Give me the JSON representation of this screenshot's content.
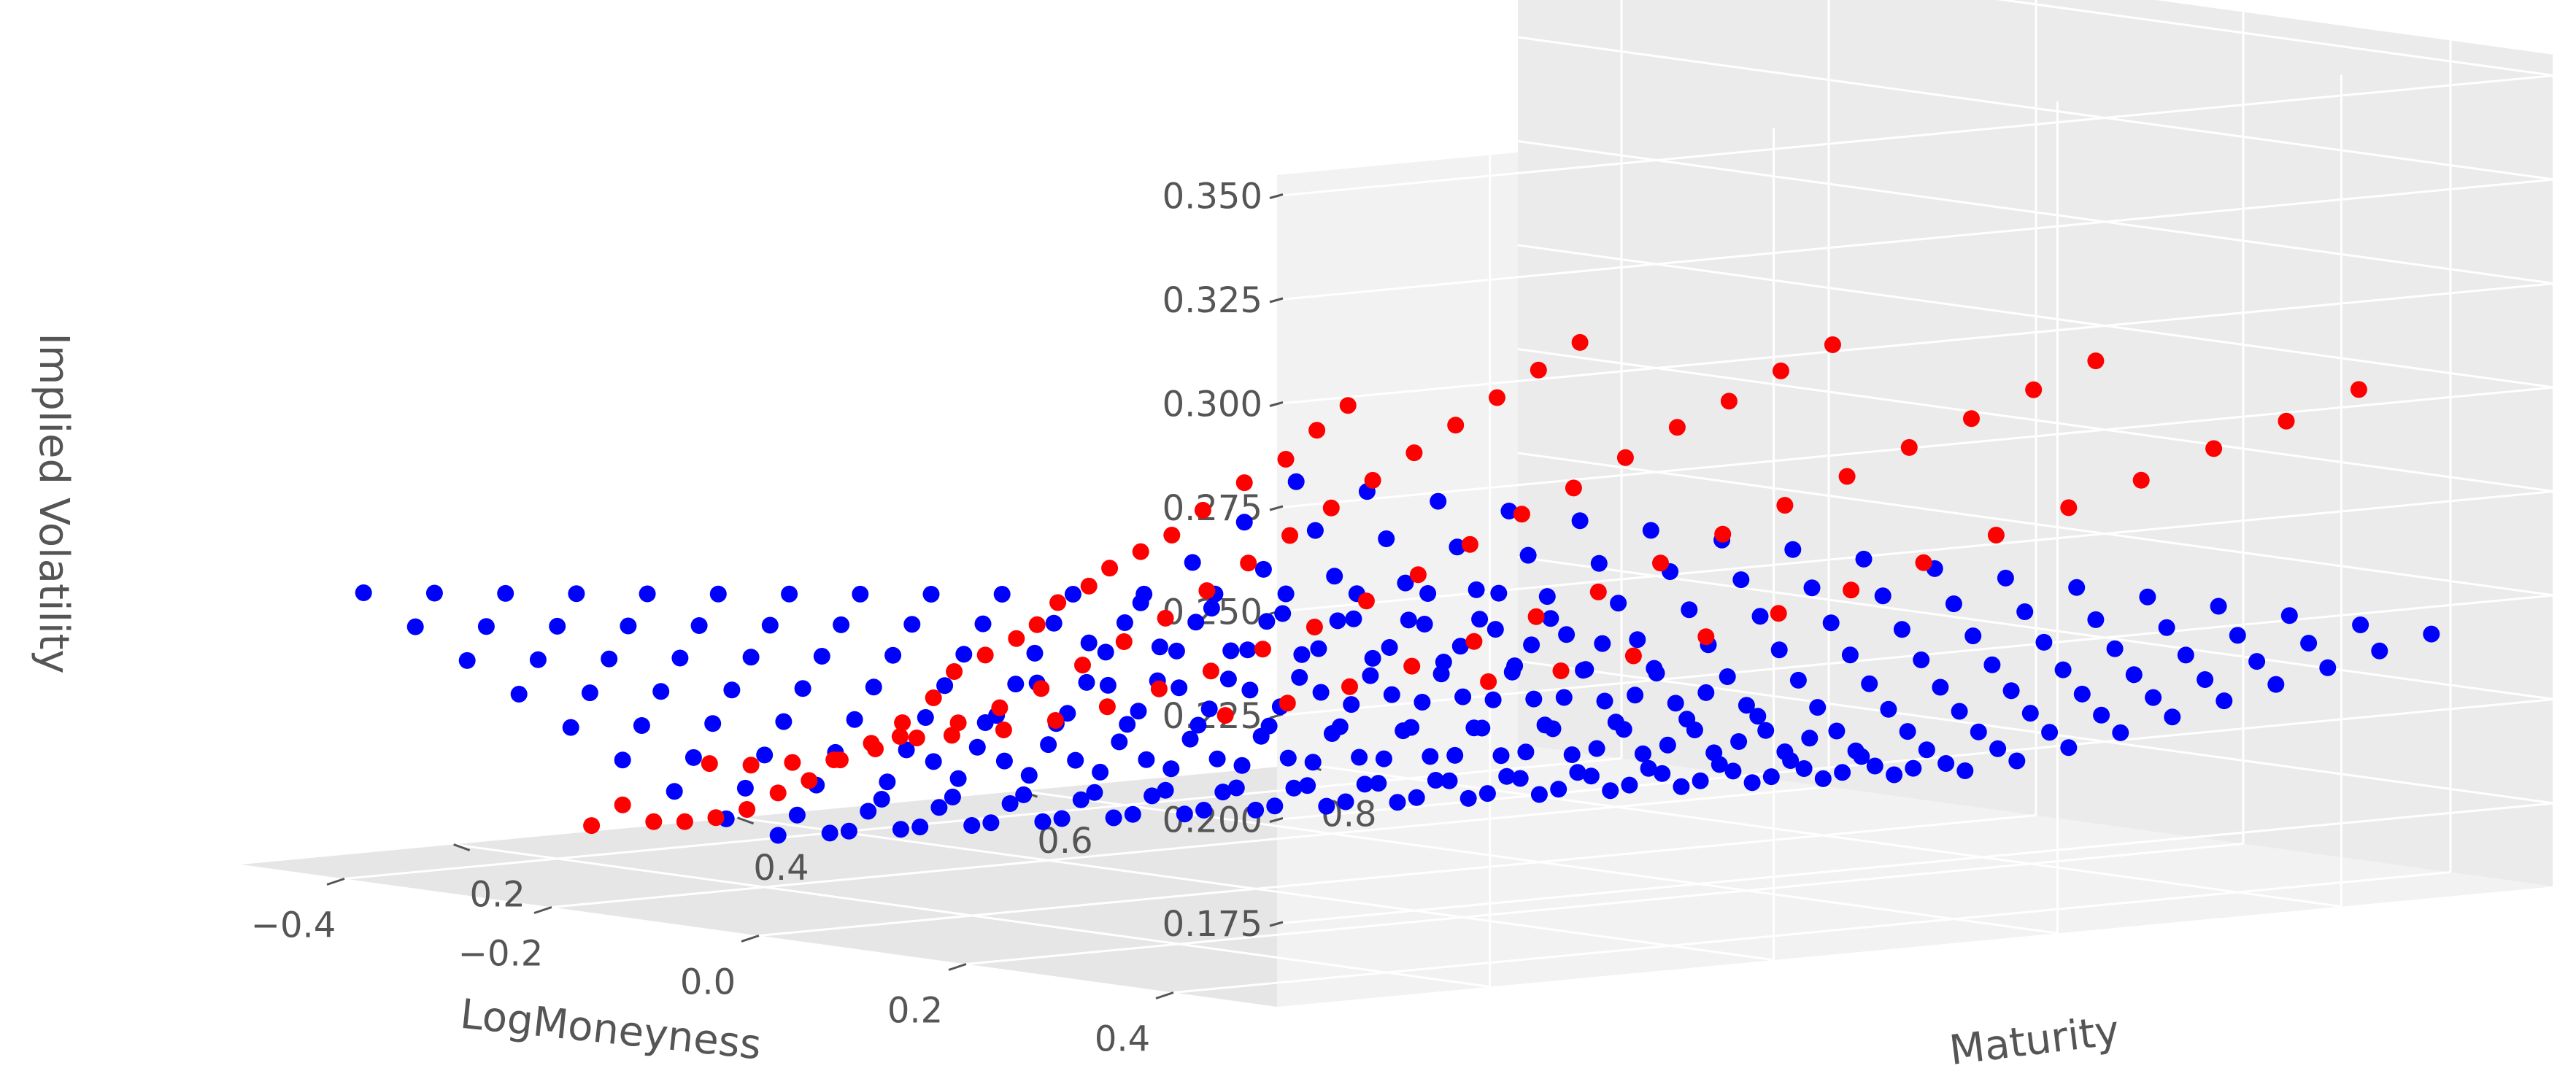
{
  "chart_data": {
    "type": "scatter3d",
    "xlabel": "LogMoneyness",
    "ylabel": "Maturity",
    "zlabel": "Implied Volatility",
    "x_ticks": [
      0.4,
      0.2,
      0.0,
      -0.2,
      -0.4
    ],
    "x_tick_labels": [
      "0.4",
      "0.2",
      "0.0",
      "−0.2",
      "−0.4"
    ],
    "y_ticks": [
      0.2,
      0.4,
      0.6,
      0.8
    ],
    "y_tick_labels": [
      "0.2",
      "0.4",
      "0.6",
      "0.8"
    ],
    "z_ticks": [
      0.175,
      0.2,
      0.225,
      0.25,
      0.275,
      0.3,
      0.325,
      0.35
    ],
    "z_tick_labels": [
      "0.175",
      "0.200",
      "0.225",
      "0.250",
      "0.275",
      "0.300",
      "0.325",
      "0.350"
    ],
    "xlim": [
      -0.5,
      0.5
    ],
    "ylim": [
      0.05,
      0.95
    ],
    "zlim": [
      0.155,
      0.355
    ],
    "grid": true,
    "colors": {
      "surface": "#0000ff",
      "market": "#ff0000",
      "pane": "#f2f2f2",
      "pane_side": "#ebebeb",
      "pane_floor": "#e6e6e6"
    },
    "series": [
      {
        "color": "#0000ff",
        "grid_x": [
          -0.45,
          -0.4,
          -0.35,
          -0.3,
          -0.25,
          -0.2,
          -0.15,
          -0.1,
          -0.05,
          0.0,
          0.05,
          0.1,
          0.15,
          0.2,
          0.25,
          0.3,
          0.35,
          0.4,
          0.45
        ],
        "grid_y": [
          0.1,
          0.15,
          0.2,
          0.25,
          0.3,
          0.35,
          0.4,
          0.45,
          0.5,
          0.55,
          0.6,
          0.65,
          0.7,
          0.75,
          0.8,
          0.85,
          0.9
        ]
      },
      {
        "color": "#ff0000",
        "slices": [
          {
            "maturity": 0.1,
            "x": [
              0.5,
              0.47,
              0.44,
              0.4,
              0.36,
              0.33,
              0.3,
              0.27,
              0.25,
              0.22,
              0.2,
              0.18,
              0.15,
              0.12,
              0.1,
              0.07,
              0.04,
              0.01,
              -0.02,
              -0.05,
              -0.08,
              -0.11,
              -0.14,
              -0.17,
              -0.2,
              -0.23
            ],
            "z": [
              0.298,
              0.291,
              0.283,
              0.276,
              0.268,
              0.261,
              0.256,
              0.251,
              0.246,
              0.241,
              0.235,
              0.231,
              0.226,
              0.221,
              0.214,
              0.207,
              0.201,
              0.196,
              0.19,
              0.186,
              0.181,
              0.178,
              0.176,
              0.175,
              0.178,
              0.172
            ]
          },
          {
            "maturity": 0.3,
            "x": [
              0.45,
              0.41,
              0.37,
              0.33,
              0.29,
              0.25,
              0.21,
              0.17,
              0.13,
              0.09,
              0.05,
              0.01,
              -0.03,
              -0.07,
              -0.11,
              -0.15,
              -0.19,
              -0.23,
              -0.27,
              -0.31,
              -0.35,
              -0.39
            ],
            "z": [
              0.305,
              0.297,
              0.289,
              0.281,
              0.273,
              0.265,
              0.257,
              0.249,
              0.241,
              0.233,
              0.225,
              0.218,
              0.211,
              0.204,
              0.198,
              0.193,
              0.188,
              0.184,
              0.18,
              0.178,
              0.176,
              0.175
            ]
          },
          {
            "maturity": 0.5,
            "x": [
              0.42,
              0.37,
              0.32,
              0.27,
              0.22,
              0.17,
              0.12,
              0.07,
              0.02,
              -0.03,
              -0.08,
              -0.13,
              -0.18,
              -0.23,
              -0.28,
              -0.33,
              -0.38,
              -0.43,
              -0.48
            ],
            "z": [
              0.297,
              0.289,
              0.28,
              0.272,
              0.263,
              0.254,
              0.246,
              0.237,
              0.228,
              0.22,
              0.212,
              0.205,
              0.198,
              0.192,
              0.186,
              0.181,
              0.177,
              0.174,
              0.172
            ]
          },
          {
            "maturity": 0.7,
            "x": [
              0.4,
              0.34,
              0.28,
              0.22,
              0.16,
              0.1,
              0.04,
              -0.02,
              -0.08,
              -0.14,
              -0.2,
              -0.26,
              -0.32,
              -0.38,
              -0.44
            ],
            "z": [
              0.286,
              0.277,
              0.268,
              0.259,
              0.25,
              0.241,
              0.232,
              0.223,
              0.214,
              0.206,
              0.198,
              0.19,
              0.183,
              0.177,
              0.172
            ]
          },
          {
            "maturity": 0.9,
            "x": [
              0.38,
              0.31,
              0.24,
              0.17,
              0.1,
              0.03,
              -0.04,
              -0.11,
              -0.18,
              -0.25,
              -0.32,
              -0.39,
              -0.46
            ],
            "z": [
              0.272,
              0.262,
              0.253,
              0.243,
              0.234,
              0.225,
              0.216,
              0.207,
              0.199,
              0.191,
              0.184,
              0.178,
              0.173
            ]
          }
        ]
      }
    ]
  }
}
